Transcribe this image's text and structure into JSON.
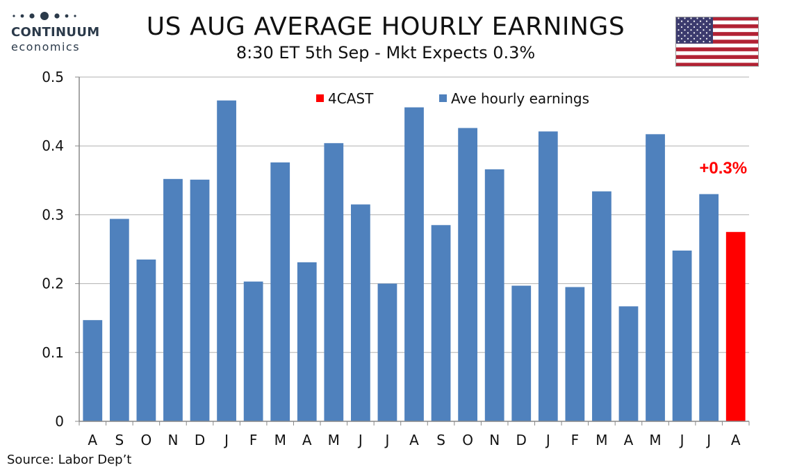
{
  "header": {
    "title": "US AUG AVERAGE HOURLY EARNINGS",
    "subtitle": "8:30 ET 5th Sep - Mkt Expects 0.3%"
  },
  "logo": {
    "brand": "CONTINUUM",
    "sub": "economics",
    "color": "#2b3a4a"
  },
  "flag": {
    "icon": "us-flag-icon"
  },
  "source": "Source: Labor Dep’t",
  "colors": {
    "bar": "#4f81bd",
    "forecast": "#ff0000",
    "grid": "#b0b0b0",
    "axis": "#888888"
  },
  "chart_data": {
    "type": "bar",
    "title": "",
    "xlabel": "",
    "ylabel": "",
    "ylim": [
      0,
      0.5
    ],
    "yticks": [
      "0",
      "0.1",
      "0.2",
      "0.3",
      "0.4",
      "0.5"
    ],
    "ytick_values": [
      0,
      0.1,
      0.2,
      0.3,
      0.4,
      0.5
    ],
    "grid": true,
    "legend_position": "top",
    "categories": [
      "A",
      "S",
      "O",
      "N",
      "D",
      "J",
      "F",
      "M",
      "A",
      "M",
      "J",
      "J",
      "A",
      "S",
      "O",
      "N",
      "D",
      "J",
      "F",
      "M",
      "A",
      "M",
      "J",
      "J",
      "A"
    ],
    "series": [
      {
        "name": "Ave hourly earnings",
        "color": "#4f81bd",
        "values": [
          0.147,
          0.294,
          0.235,
          0.352,
          0.351,
          0.466,
          0.203,
          0.376,
          0.231,
          0.404,
          0.315,
          0.2,
          0.456,
          0.285,
          0.426,
          0.366,
          0.197,
          0.421,
          0.195,
          0.334,
          0.167,
          0.417,
          0.248,
          0.33,
          null
        ]
      },
      {
        "name": "4CAST",
        "color": "#ff0000",
        "values": [
          null,
          null,
          null,
          null,
          null,
          null,
          null,
          null,
          null,
          null,
          null,
          null,
          null,
          null,
          null,
          null,
          null,
          null,
          null,
          null,
          null,
          null,
          null,
          null,
          0.275
        ]
      }
    ],
    "annotations": [
      {
        "text": "+0.3%",
        "category_index": 24,
        "color": "#ff0000"
      }
    ]
  }
}
